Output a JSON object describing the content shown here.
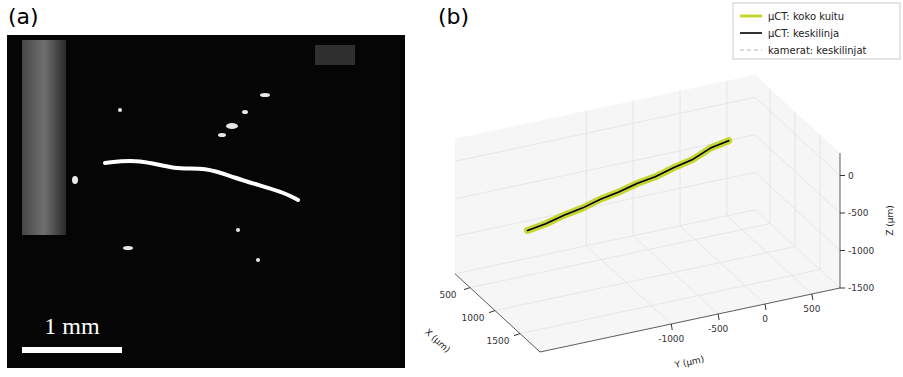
{
  "chart_data": [
    {
      "type": "image",
      "title": "(a)",
      "annotations": [
        "1 mm"
      ]
    },
    {
      "type": "line3d",
      "title": "(b)",
      "xlabel": "X (μm)",
      "ylabel": "Y (μm)",
      "zlabel": "Z (μm)",
      "xlim": [
        200,
        1900
      ],
      "ylim": [
        -2400,
        800
      ],
      "zlim": [
        -1500,
        300
      ],
      "xticks": [
        500,
        1000,
        1500
      ],
      "yticks": [
        -1000,
        -500,
        0,
        500
      ],
      "zticks": [
        -1500,
        -1000,
        -500,
        0
      ],
      "grid": true,
      "legend": "upper right",
      "series": [
        {
          "name": "μCT: koko kuitu",
          "color": "#c6d630",
          "line_style": "solid",
          "x": [
            900,
            890,
            880,
            870,
            860,
            850,
            840,
            830,
            820,
            815,
            810,
            800
          ],
          "y": [
            -2000,
            -1800,
            -1600,
            -1400,
            -1200,
            -1000,
            -800,
            -600,
            -400,
            -200,
            0,
            200
          ],
          "z": [
            -600,
            -570,
            -515,
            -480,
            -420,
            -385,
            -330,
            -300,
            -240,
            -190,
            -90,
            -50
          ]
        },
        {
          "name": "μCT: keskilinja",
          "color": "#000000",
          "line_style": "solid",
          "x": [
            900,
            890,
            880,
            870,
            860,
            850,
            840,
            830,
            820,
            815,
            810,
            800
          ],
          "y": [
            -2000,
            -1800,
            -1600,
            -1400,
            -1200,
            -1000,
            -800,
            -600,
            -400,
            -200,
            0,
            200
          ],
          "z": [
            -600,
            -570,
            -515,
            -480,
            -420,
            -385,
            -330,
            -300,
            -240,
            -190,
            -90,
            -50
          ]
        },
        {
          "name": "kamerat: keskilinjat",
          "color": "#b0b0b0",
          "line_style": "dashed",
          "x": [
            910,
            895,
            885,
            875,
            865,
            855,
            845,
            835,
            825,
            818,
            812,
            805
          ],
          "y": [
            -2000,
            -1800,
            -1600,
            -1400,
            -1200,
            -1000,
            -800,
            -600,
            -400,
            -200,
            0,
            200
          ],
          "z": [
            -585,
            -555,
            -505,
            -465,
            -410,
            -372,
            -318,
            -288,
            -228,
            -178,
            -80,
            -40
          ]
        }
      ]
    }
  ]
}
